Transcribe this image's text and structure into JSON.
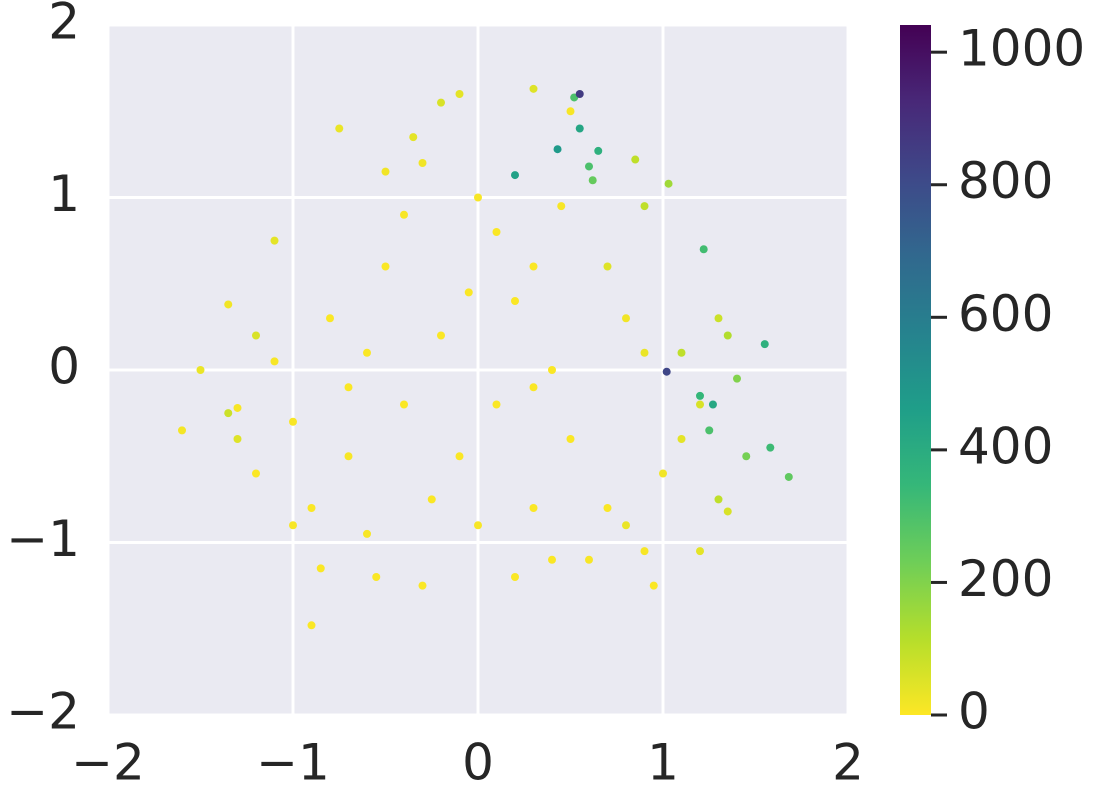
{
  "chart_data": {
    "type": "scatter",
    "xlim": [
      -2,
      2
    ],
    "ylim": [
      -2,
      2
    ],
    "xticks": [
      {
        "value": -2,
        "label": "−2"
      },
      {
        "value": -1,
        "label": "−1"
      },
      0,
      1,
      2
    ],
    "yticks": [
      {
        "value": -2,
        "label": "−2"
      },
      {
        "value": -1,
        "label": "−1"
      },
      0,
      1,
      2
    ],
    "grid": true,
    "clim": [
      0,
      1041
    ],
    "cticks": [
      0,
      200,
      400,
      600,
      800,
      1000
    ],
    "colormap": [
      "#fde725",
      "#b5de2b",
      "#6ece58",
      "#35b779",
      "#1f9e89",
      "#26828e",
      "#31688e",
      "#3e4989",
      "#482878",
      "#440154"
    ],
    "x": [
      -1.35,
      -1.3,
      -1.5,
      -1.6,
      -1.2,
      -1.1,
      -1.0,
      -0.9,
      -0.85,
      -0.9,
      -0.7,
      -0.6,
      -0.5,
      -0.4,
      -0.3,
      -0.2,
      -0.1,
      0.0,
      0.1,
      0.2,
      -0.2,
      -0.4,
      -0.1,
      0.1,
      0.3,
      0.5,
      0.7,
      0.9,
      0.95,
      0.4,
      0.2,
      -0.3,
      -0.55,
      1.0,
      1.1,
      1.2,
      1.3,
      1.35,
      1.4,
      1.45,
      1.2,
      1.27,
      1.55,
      1.58,
      1.68,
      1.02,
      0.55,
      0.52,
      0.55,
      0.2,
      0.43,
      0.65,
      0.6,
      0.62,
      1.22,
      1.03,
      0.85,
      0.9,
      0.7,
      0.8,
      0.9,
      1.1,
      1.25,
      -0.75,
      -0.5,
      -1.1,
      -1.2,
      -1.35,
      -1.3,
      -1.0,
      -0.6,
      -0.25,
      0.0,
      0.3,
      0.6,
      0.8,
      1.2,
      1.3,
      1.35,
      0.3,
      0.4,
      -0.7,
      -0.8,
      0.45,
      -0.05,
      0.5,
      0.3,
      -0.35
    ],
    "values": [
      0.38,
      -0.22,
      0.0,
      -0.35,
      -0.6,
      0.05,
      -0.3,
      -0.8,
      -1.15,
      -1.48,
      -0.5,
      0.1,
      0.6,
      0.9,
      1.2,
      1.55,
      1.6,
      1.0,
      0.8,
      0.4,
      0.2,
      -0.2,
      -0.5,
      -0.2,
      -0.1,
      -0.4,
      -0.8,
      -1.05,
      -1.25,
      -1.1,
      -1.2,
      -1.25,
      -1.2,
      -0.6,
      -0.4,
      -0.2,
      0.3,
      0.2,
      -0.05,
      -0.5,
      -0.15,
      -0.2,
      0.15,
      -0.45,
      -0.62,
      -0.01,
      1.6,
      1.58,
      1.4,
      1.13,
      1.28,
      1.27,
      1.18,
      1.1,
      0.7,
      1.08,
      1.22,
      0.95,
      0.6,
      0.3,
      0.1,
      0.1,
      -0.35,
      1.4,
      1.15,
      0.75,
      0.2,
      -0.25,
      -0.4,
      -0.9,
      -0.95,
      -0.75,
      -0.9,
      -0.8,
      -1.1,
      -0.9,
      -1.05,
      -0.75,
      -0.82,
      0.6,
      0.0,
      -0.1,
      0.3,
      0.95,
      0.45,
      1.5,
      1.63,
      1.35
    ],
    "color_values": [
      20,
      10,
      30,
      15,
      5,
      10,
      8,
      5,
      5,
      5,
      10,
      5,
      5,
      10,
      20,
      60,
      40,
      10,
      5,
      5,
      5,
      5,
      5,
      5,
      5,
      5,
      5,
      10,
      5,
      5,
      5,
      5,
      5,
      20,
      40,
      60,
      80,
      120,
      200,
      220,
      350,
      420,
      380,
      330,
      260,
      820,
      860,
      300,
      430,
      450,
      480,
      380,
      300,
      250,
      320,
      150,
      100,
      100,
      50,
      20,
      30,
      100,
      300,
      30,
      20,
      40,
      60,
      80,
      50,
      10,
      10,
      5,
      10,
      5,
      10,
      30,
      40,
      100,
      60,
      5,
      5,
      5,
      5,
      10,
      5,
      10,
      50,
      40
    ]
  }
}
